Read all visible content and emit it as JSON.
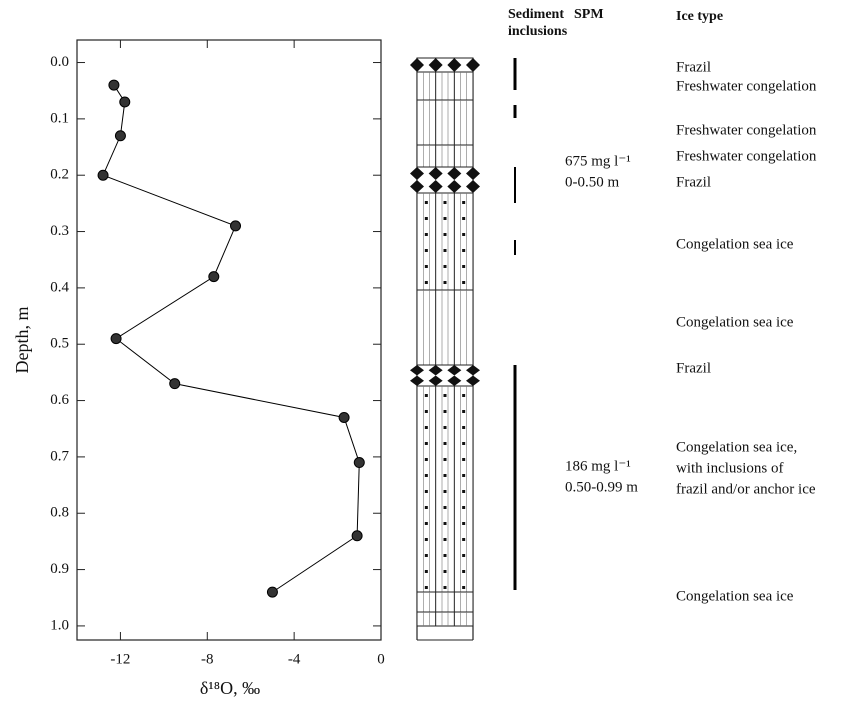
{
  "chart_data": {
    "type": "line",
    "x_label": "δ¹⁸O, ‰",
    "y_label": "Depth, m",
    "x": [
      -12.3,
      -11.8,
      -12.0,
      -12.8,
      -6.7,
      -7.7,
      -12.2,
      -9.5,
      -1.7,
      -1.0,
      -1.1,
      -5.0
    ],
    "values": [
      0.04,
      0.07,
      0.13,
      0.2,
      0.29,
      0.38,
      0.49,
      0.57,
      0.63,
      0.71,
      0.84,
      0.94
    ],
    "color": "#000000",
    "xlim": [
      -14,
      0
    ],
    "ylim": [
      -0.04,
      1.025
    ],
    "invert_y": true,
    "xticks": [
      -12,
      -8,
      -4,
      0
    ],
    "yticks": [
      {
        "value": 0,
        "label": "0.0"
      },
      0.1,
      0.2,
      0.3,
      0.4,
      0.5,
      0.6,
      0.7,
      0.8,
      0.9,
      {
        "value": 1,
        "label": "1.0"
      }
    ]
  },
  "column": {
    "headers": {
      "sediment": [
        "Sediment",
        "inclusions"
      ],
      "spm": "SPM",
      "ice_type": "Ice type"
    },
    "spm": [
      [
        "675 mg l⁻¹",
        "0-0.50 m"
      ],
      [
        "186 mg l⁻¹",
        "0.50-0.99 m"
      ]
    ],
    "ice_types": [
      [
        "Frazil"
      ],
      [
        "Freshwater congelation"
      ],
      [
        "Freshwater congelation"
      ],
      [
        "Freshwater congelation"
      ],
      [
        "Frazil"
      ],
      [
        "Congelation sea ice"
      ],
      [
        "Congelation sea ice"
      ],
      [
        "Frazil"
      ],
      [
        "Congelation sea ice,",
        "with inclusions of",
        "frazil and/or anchor ice"
      ],
      [
        "Congelation sea ice"
      ]
    ]
  }
}
